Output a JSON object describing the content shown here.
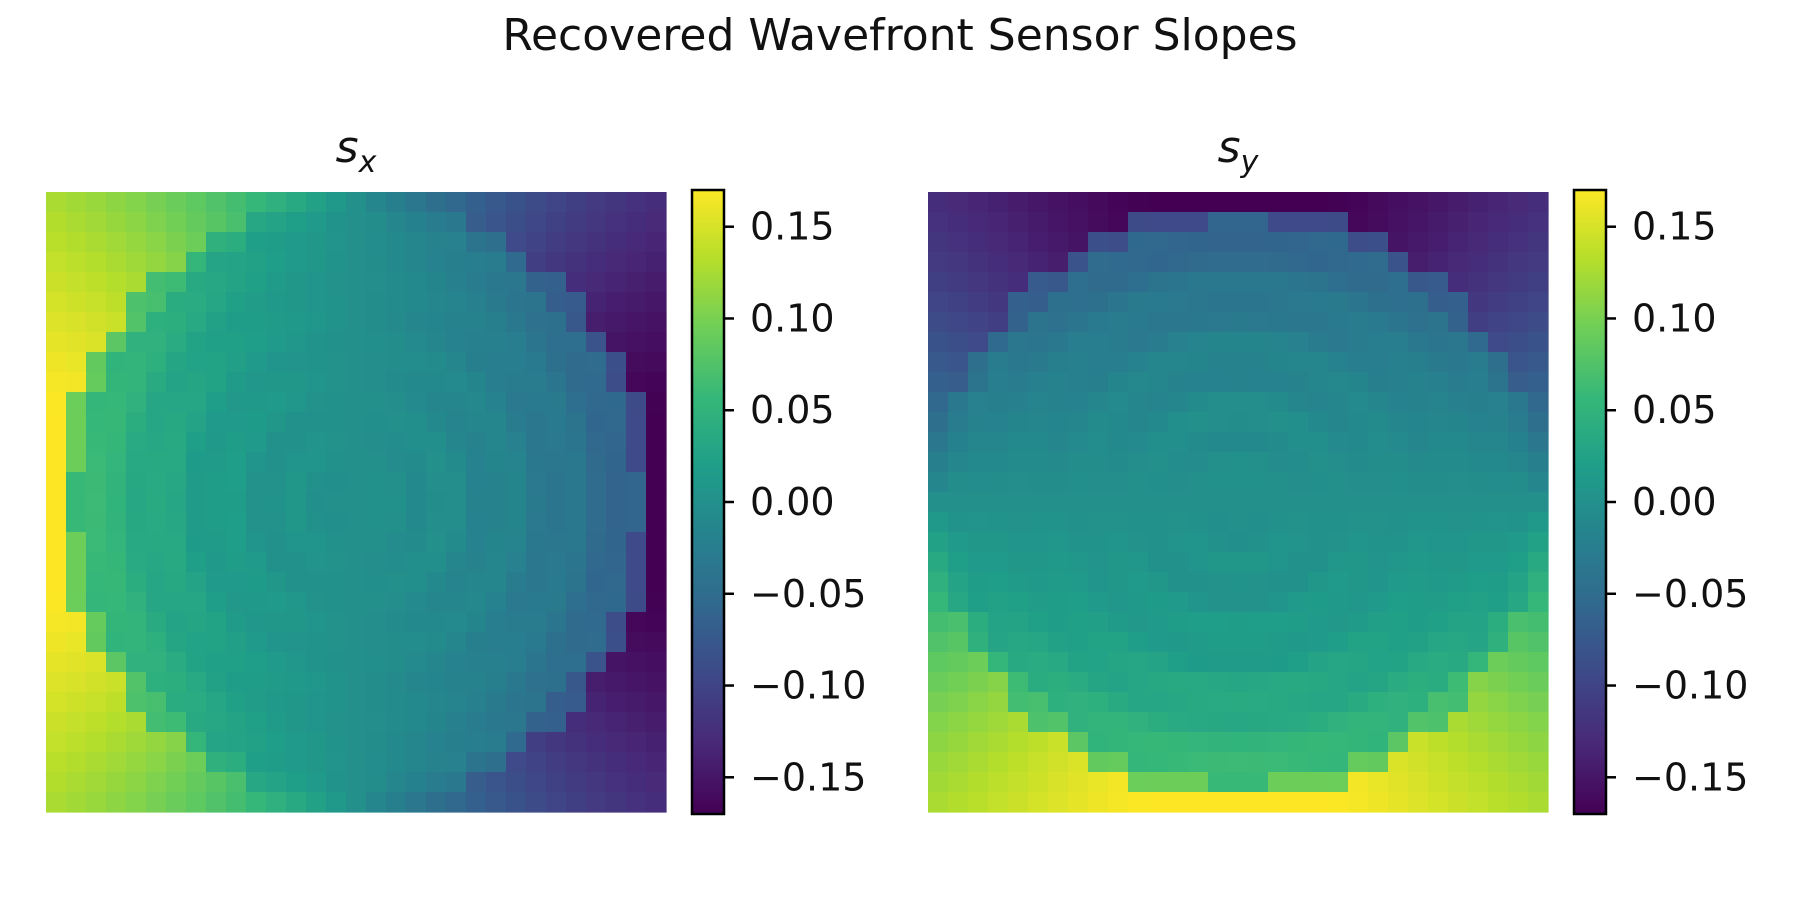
{
  "title": "Recovered Wavefront Sensor Slopes",
  "panels": [
    {
      "name": "s",
      "subscript": "x"
    },
    {
      "name": "s",
      "subscript": "y"
    }
  ],
  "colormap": {
    "name": "viridis",
    "stops": [
      "#440154",
      "#482878",
      "#3e4989",
      "#31688e",
      "#26828e",
      "#1f9e89",
      "#35b779",
      "#6ece58",
      "#b5de2b",
      "#fde725"
    ]
  },
  "chart_data": [
    {
      "type": "heatmap",
      "title": "s_x",
      "grid_size": 31,
      "vmin": -0.17,
      "vmax": 0.17,
      "pattern": "horizontal gradient: positive (~+0.17) on left edge corners, negative (~-0.17) on right corners, near 0 inside circular pupil with concentric ripple",
      "colorbar_ticks": [
        "0.15",
        "0.10",
        "0.05",
        "0.00",
        "−0.05",
        "−0.10",
        "−0.15"
      ],
      "colorbar_tick_values": [
        0.15,
        0.1,
        0.05,
        0.0,
        -0.05,
        -0.1,
        -0.15
      ]
    },
    {
      "type": "heatmap",
      "title": "s_y",
      "grid_size": 31,
      "vmin": -0.17,
      "vmax": 0.17,
      "pattern": "vertical gradient: negative (~-0.17) at top corners, positive (~+0.17) at bottom corners, near 0 inside circular pupil with concentric ripple",
      "colorbar_ticks": [
        "0.15",
        "0.10",
        "0.05",
        "0.00",
        "−0.05",
        "−0.10",
        "−0.15"
      ],
      "colorbar_tick_values": [
        0.15,
        0.1,
        0.05,
        0.0,
        -0.05,
        -0.1,
        -0.15
      ]
    }
  ]
}
